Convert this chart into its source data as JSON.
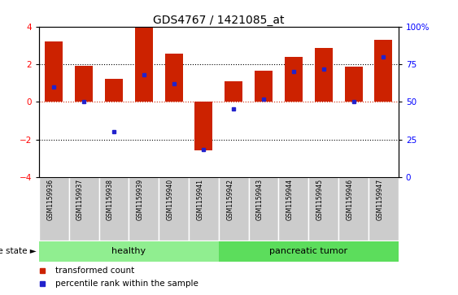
{
  "title": "GDS4767 / 1421085_at",
  "samples": [
    "GSM1159936",
    "GSM1159937",
    "GSM1159938",
    "GSM1159939",
    "GSM1159940",
    "GSM1159941",
    "GSM1159942",
    "GSM1159943",
    "GSM1159944",
    "GSM1159945",
    "GSM1159946",
    "GSM1159947"
  ],
  "bar_values": [
    3.2,
    1.9,
    1.2,
    4.0,
    2.55,
    -2.6,
    1.1,
    1.65,
    2.4,
    2.85,
    1.85,
    3.3
  ],
  "dot_values": [
    60,
    50,
    30,
    68,
    62,
    18,
    45,
    52,
    70,
    72,
    50,
    80
  ],
  "groups": [
    {
      "label": "healthy",
      "start": 0,
      "end": 6,
      "color": "#90EE90"
    },
    {
      "label": "pancreatic tumor",
      "start": 6,
      "end": 12,
      "color": "#5CDD5C"
    }
  ],
  "bar_color": "#CC2200",
  "dot_color": "#2222CC",
  "ylim": [
    -4,
    4
  ],
  "right_ylim": [
    0,
    100
  ],
  "right_yticks": [
    0,
    25,
    50,
    75,
    100
  ],
  "right_yticklabels": [
    "0",
    "25",
    "50",
    "75",
    "100%"
  ],
  "left_yticks": [
    -4,
    -2,
    0,
    2,
    4
  ],
  "dotted_lines": [
    -2,
    2
  ],
  "bar_width": 0.6,
  "disease_state_label": "disease state",
  "legend_items": [
    {
      "label": "transformed count",
      "color": "#CC2200"
    },
    {
      "label": "percentile rank within the sample",
      "color": "#2222CC"
    }
  ],
  "background_color": "#ffffff",
  "tick_label_area_color": "#cccccc",
  "healthy_color": "#90EE90",
  "tumor_color": "#5CDD5C"
}
